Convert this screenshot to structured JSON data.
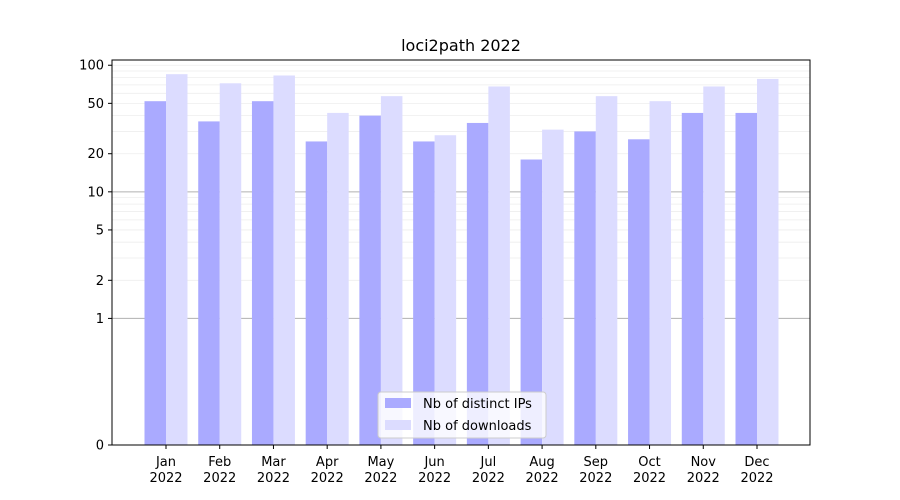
{
  "chart_data": {
    "type": "bar",
    "title": "loci2path 2022",
    "xlabel": "",
    "ylabel": "",
    "yscale": "symlog",
    "ylim": [
      0,
      110
    ],
    "y_ticks": [
      "0",
      "1",
      "2",
      "5",
      "10",
      "20",
      "50",
      "100"
    ],
    "y_tick_values": [
      0,
      1,
      2,
      5,
      10,
      20,
      50,
      100
    ],
    "categories": [
      "Jan\n2022",
      "Feb\n2022",
      "Mar\n2022",
      "Apr\n2022",
      "May\n2022",
      "Jun\n2022",
      "Jul\n2022",
      "Aug\n2022",
      "Sep\n2022",
      "Oct\n2022",
      "Nov\n2022",
      "Dec\n2022"
    ],
    "category_lines": [
      [
        "Jan",
        "2022"
      ],
      [
        "Feb",
        "2022"
      ],
      [
        "Mar",
        "2022"
      ],
      [
        "Apr",
        "2022"
      ],
      [
        "May",
        "2022"
      ],
      [
        "Jun",
        "2022"
      ],
      [
        "Jul",
        "2022"
      ],
      [
        "Aug",
        "2022"
      ],
      [
        "Sep",
        "2022"
      ],
      [
        "Oct",
        "2022"
      ],
      [
        "Nov",
        "2022"
      ],
      [
        "Dec",
        "2022"
      ]
    ],
    "series": [
      {
        "name": "Nb of distinct IPs",
        "color": "#aaaaff",
        "values": [
          52,
          36,
          52,
          25,
          40,
          25,
          35,
          18,
          30,
          26,
          42,
          42
        ]
      },
      {
        "name": "Nb of downloads",
        "color": "#dcdcff",
        "values": [
          85,
          72,
          83,
          42,
          57,
          28,
          68,
          31,
          57,
          52,
          68,
          78
        ]
      }
    ],
    "legend_position": "bottom-center",
    "grid": true,
    "major_grid_lines_at": [
      1,
      10
    ]
  }
}
